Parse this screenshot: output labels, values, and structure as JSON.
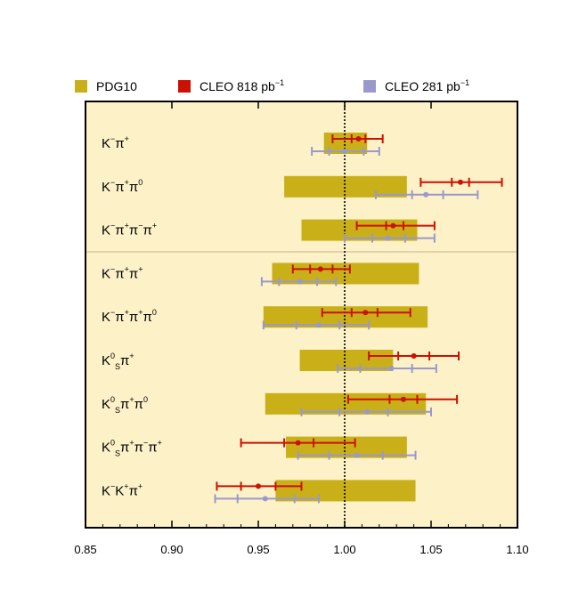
{
  "chart_data": {
    "type": "scatter",
    "title": "",
    "xlabel": "",
    "ylabel": "",
    "xlim": [
      0.85,
      1.1
    ],
    "x_ticks": [
      "0.85",
      "0.90",
      "0.95",
      "1.00",
      "1.05",
      "1.10"
    ],
    "x_tick_values": [
      0.85,
      0.9,
      0.95,
      1.0,
      1.05,
      1.1
    ],
    "reference_line": 1.0,
    "legend": {
      "placement": "top",
      "items": [
        {
          "key": "pdg",
          "label": "PDG10",
          "sup": "",
          "color": "#c9b019"
        },
        {
          "key": "cleo818",
          "label": "CLEO 818 pb",
          "sup": "−1",
          "color": "#cc1100"
        },
        {
          "key": "cleo281",
          "label": "CLEO 281 pb",
          "sup": "−1",
          "color": "#9999cc"
        }
      ]
    },
    "colors": {
      "background": "#fdf1c8",
      "pdg": "#c9b019",
      "cleo818": "#cc1100",
      "cleo281": "#9999cc",
      "separator": "#c8b48a"
    },
    "separator_after_row": 2,
    "rows": [
      {
        "label": [
          [
            "K",
            "n"
          ],
          [
            "−",
            "sup"
          ],
          [
            "π",
            "n"
          ],
          [
            "+",
            "sup"
          ]
        ],
        "pdg": [
          0.988,
          1.013
        ],
        "cleo818": {
          "value": 1.008,
          "stat": [
            1.004,
            1.012
          ],
          "total": [
            0.993,
            1.022
          ]
        },
        "cleo281": {
          "value": 1.0,
          "stat": [
            0.991,
            1.011
          ],
          "total": [
            0.981,
            1.02
          ]
        }
      },
      {
        "label": [
          [
            "K",
            "n"
          ],
          [
            "−",
            "sup"
          ],
          [
            "π",
            "n"
          ],
          [
            "+",
            "sup"
          ],
          [
            "π",
            "n"
          ],
          [
            "0",
            "sup"
          ]
        ],
        "pdg": [
          0.965,
          1.036
        ],
        "cleo818": {
          "value": 1.067,
          "stat": [
            1.062,
            1.072
          ],
          "total": [
            1.044,
            1.091
          ]
        },
        "cleo281": {
          "value": 1.047,
          "stat": [
            1.039,
            1.057
          ],
          "total": [
            1.018,
            1.077
          ]
        }
      },
      {
        "label": [
          [
            "K",
            "n"
          ],
          [
            "−",
            "sup"
          ],
          [
            "π",
            "n"
          ],
          [
            "+",
            "sup"
          ],
          [
            "π",
            "n"
          ],
          [
            "−",
            "sup"
          ],
          [
            "π",
            "n"
          ],
          [
            "+",
            "sup"
          ]
        ],
        "pdg": [
          0.975,
          1.042
        ],
        "cleo818": {
          "value": 1.028,
          "stat": [
            1.024,
            1.034
          ],
          "total": [
            1.007,
            1.052
          ]
        },
        "cleo281": {
          "value": 1.025,
          "stat": [
            1.016,
            1.035
          ],
          "total": [
            1.0,
            1.052
          ]
        }
      },
      {
        "label": [
          [
            "K",
            "n"
          ],
          [
            "−",
            "sup"
          ],
          [
            "π",
            "n"
          ],
          [
            "+",
            "sup"
          ],
          [
            "π",
            "n"
          ],
          [
            "+",
            "sup"
          ]
        ],
        "pdg": [
          0.958,
          1.043
        ],
        "cleo818": {
          "value": 0.986,
          "stat": [
            0.98,
            0.993
          ],
          "total": [
            0.97,
            1.003
          ]
        },
        "cleo281": {
          "value": 0.974,
          "stat": [
            0.962,
            0.984
          ],
          "total": [
            0.952,
            0.995
          ]
        }
      },
      {
        "label": [
          [
            "K",
            "n"
          ],
          [
            "−",
            "sup"
          ],
          [
            "π",
            "n"
          ],
          [
            "+",
            "sup"
          ],
          [
            "π",
            "n"
          ],
          [
            "+",
            "sup"
          ],
          [
            "π",
            "n"
          ],
          [
            "0",
            "sup"
          ]
        ],
        "pdg": [
          0.953,
          1.048
        ],
        "cleo818": {
          "value": 1.012,
          "stat": [
            1.004,
            1.019
          ],
          "total": [
            0.987,
            1.038
          ]
        },
        "cleo281": {
          "value": 0.985,
          "stat": [
            0.972,
            0.997
          ],
          "total": [
            0.953,
            1.014
          ]
        }
      },
      {
        "label": [
          [
            "K",
            "n"
          ],
          [
            "0",
            "sup"
          ],
          [
            "S",
            "sub"
          ],
          [
            "π",
            "n"
          ],
          [
            "+",
            "sup"
          ]
        ],
        "pdg": [
          0.974,
          1.028
        ],
        "cleo818": {
          "value": 1.04,
          "stat": [
            1.031,
            1.049
          ],
          "total": [
            1.014,
            1.066
          ]
        },
        "cleo281": {
          "value": 1.027,
          "stat": [
            1.009,
            1.039
          ],
          "total": [
            0.996,
            1.053
          ]
        }
      },
      {
        "label": [
          [
            "K",
            "n"
          ],
          [
            "0",
            "sup"
          ],
          [
            "S",
            "sub"
          ],
          [
            "π",
            "n"
          ],
          [
            "+",
            "sup"
          ],
          [
            "π",
            "n"
          ],
          [
            "0",
            "sup"
          ]
        ],
        "pdg": [
          0.954,
          1.047
        ],
        "cleo818": {
          "value": 1.034,
          "stat": [
            1.026,
            1.042
          ],
          "total": [
            1.002,
            1.065
          ]
        },
        "cleo281": {
          "value": 1.013,
          "stat": [
            0.997,
            1.025
          ],
          "total": [
            0.975,
            1.05
          ]
        }
      },
      {
        "label": [
          [
            "K",
            "n"
          ],
          [
            "0",
            "sup"
          ],
          [
            "S",
            "sub"
          ],
          [
            "π",
            "n"
          ],
          [
            "+",
            "sup"
          ],
          [
            "π",
            "n"
          ],
          [
            "−",
            "sup"
          ],
          [
            "π",
            "n"
          ],
          [
            "+",
            "sup"
          ]
        ],
        "pdg": [
          0.966,
          1.036
        ],
        "cleo818": {
          "value": 0.973,
          "stat": [
            0.965,
            0.982
          ],
          "total": [
            0.94,
            1.006
          ]
        },
        "cleo281": {
          "value": 1.007,
          "stat": [
            0.991,
            1.022
          ],
          "total": [
            0.973,
            1.041
          ]
        }
      },
      {
        "label": [
          [
            "K",
            "n"
          ],
          [
            "−",
            "sup"
          ],
          [
            "K",
            "n"
          ],
          [
            "+",
            "sup"
          ],
          [
            "π",
            "n"
          ],
          [
            "+",
            "sup"
          ]
        ],
        "pdg": [
          0.96,
          1.041
        ],
        "cleo818": {
          "value": 0.95,
          "stat": [
            0.94,
            0.96
          ],
          "total": [
            0.926,
            0.975
          ]
        },
        "cleo281": {
          "value": 0.954,
          "stat": [
            0.938,
            0.971
          ],
          "total": [
            0.925,
            0.985
          ]
        }
      }
    ]
  }
}
